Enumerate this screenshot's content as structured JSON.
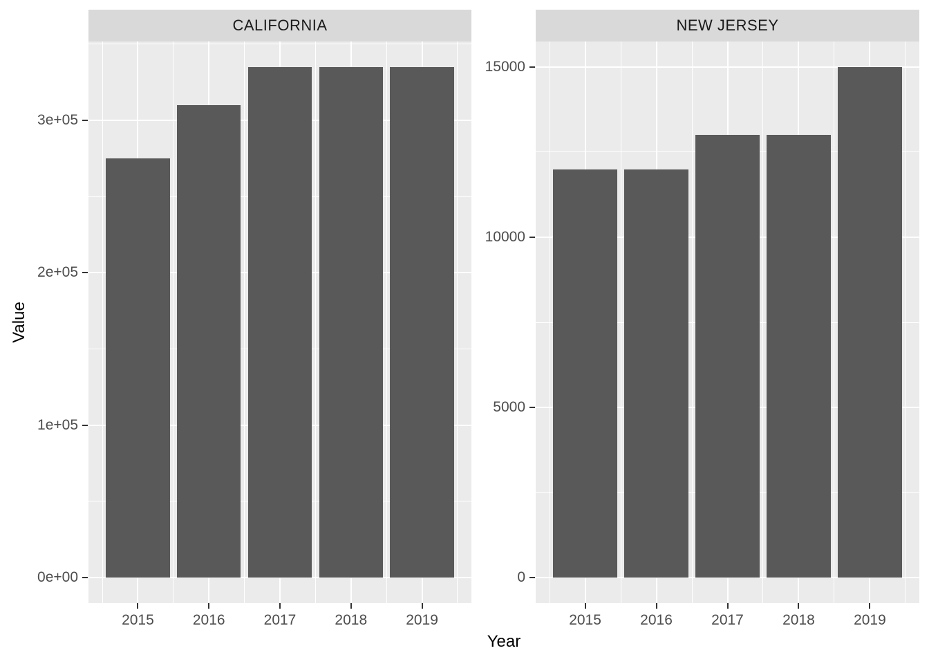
{
  "chart_data": {
    "type": "bar",
    "title": "",
    "xlabel": "Year",
    "ylabel": "Value",
    "grid": true,
    "legend": "none",
    "categories": [
      "2015",
      "2016",
      "2017",
      "2018",
      "2019"
    ],
    "facets": [
      {
        "label": "CALIFORNIA",
        "values": [
          275000,
          310000,
          335000,
          335000,
          335000
        ],
        "ymax": 335000,
        "ylim": [
          -16750,
          352250
        ],
        "y_major_ticks": [
          {
            "label": "0e+00",
            "value": 0
          },
          {
            "label": "1e+05",
            "value": 100000
          },
          {
            "label": "2e+05",
            "value": 200000
          },
          {
            "label": "3e+05",
            "value": 300000
          }
        ],
        "y_minor_gridlines": [
          50000,
          150000,
          250000,
          350000
        ]
      },
      {
        "label": "NEW JERSEY",
        "values": [
          12000,
          12000,
          13000,
          13000,
          15000
        ],
        "ymax": 15000,
        "ylim": [
          -750,
          15750
        ],
        "y_major_ticks": [
          {
            "label": "0",
            "value": 0
          },
          {
            "label": "5000",
            "value": 5000
          },
          {
            "label": "10000",
            "value": 10000
          },
          {
            "label": "15000",
            "value": 15000
          }
        ],
        "y_minor_gridlines": [
          2500,
          7500,
          12500
        ]
      }
    ],
    "colors": {
      "bar": "#595959",
      "panel_bg": "#EBEBEB",
      "strip_bg": "#D9D9D9",
      "grid": "#FFFFFF",
      "tick_mark": "#333333",
      "tick_label": "#4D4D4D",
      "strip_text": "#1A1A1A",
      "axis_title": "#000000",
      "figure_bg": "#FFFFFF"
    }
  }
}
